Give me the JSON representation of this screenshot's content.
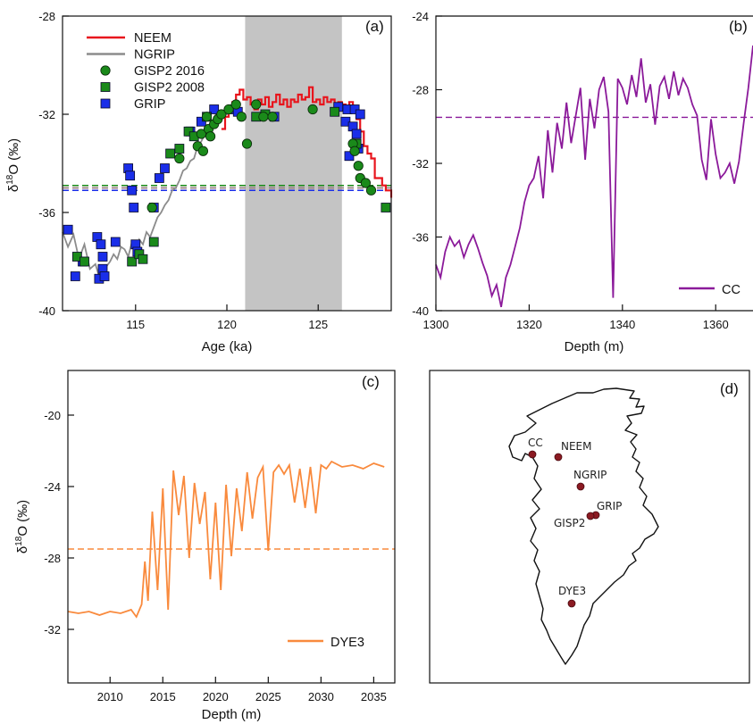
{
  "chart_data": [
    {
      "panel": "(a)",
      "type": "line",
      "xlabel": "Age (ka)",
      "ylabel": "δ18O (‰)",
      "xlim": [
        111,
        129
      ],
      "ylim": [
        -40,
        -28
      ],
      "xticks": [
        115,
        120,
        125
      ],
      "yticks": [
        -40,
        -36,
        -32,
        -28
      ],
      "legend_position": "top-left",
      "shaded_interval": [
        121,
        126.3
      ],
      "series": [
        {
          "name": "NEEM",
          "type": "step-line",
          "color": "#e8141c",
          "x": [
            119.7,
            119.9,
            120.1,
            120.3,
            120.5,
            120.7,
            120.9,
            121.1,
            121.3,
            121.5,
            121.7,
            121.9,
            122.1,
            122.3,
            122.5,
            122.7,
            122.9,
            123.1,
            123.3,
            123.5,
            123.7,
            123.9,
            124.1,
            124.3,
            124.5,
            124.7,
            124.9,
            125.1,
            125.3,
            125.5,
            125.7,
            125.9,
            126.1,
            126.3,
            126.5,
            126.7,
            126.9,
            127.1,
            127.3,
            127.5,
            127.7,
            127.9,
            128.1,
            128.3,
            128.5,
            128.7,
            128.9,
            129.0
          ],
          "y": [
            -32.6,
            -32.1,
            -31.8,
            -31.5,
            -31.2,
            -31.0,
            -31.4,
            -31.3,
            -31.6,
            -31.8,
            -31.4,
            -31.6,
            -31.3,
            -31.7,
            -31.5,
            -31.2,
            -31.6,
            -31.4,
            -31.7,
            -31.4,
            -31.5,
            -31.2,
            -31.4,
            -31.3,
            -30.9,
            -31.5,
            -31.4,
            -31.6,
            -31.3,
            -31.5,
            -31.4,
            -31.7,
            -31.5,
            -31.6,
            -31.7,
            -31.5,
            -31.8,
            -32.2,
            -32.7,
            -33.3,
            -33.6,
            -33.8,
            -34.6,
            -34.6,
            -34.9,
            -35.1,
            -35.1,
            -35.4
          ]
        },
        {
          "name": "NGRIP",
          "type": "line",
          "color": "#8c8c8c",
          "x": [
            111.0,
            111.3,
            111.6,
            111.9,
            112.2,
            112.5,
            112.8,
            113.0,
            113.2,
            113.4,
            113.6,
            113.8,
            114.0,
            114.2,
            114.4,
            114.6,
            114.8,
            115.0,
            115.2,
            115.4,
            115.6,
            115.8,
            116.0,
            116.2,
            116.4,
            116.6,
            116.8,
            117.0,
            117.2,
            117.4,
            117.6,
            117.8,
            118.0,
            118.2,
            118.4,
            118.6,
            118.8,
            119.0,
            119.2,
            119.4,
            119.6,
            119.8,
            120.0,
            120.2,
            120.4
          ],
          "y": [
            -36.8,
            -37.4,
            -36.9,
            -37.9,
            -37.3,
            -38.3,
            -38.1,
            -38.6,
            -38.4,
            -38.2,
            -38.0,
            -37.7,
            -37.9,
            -37.4,
            -37.5,
            -37.8,
            -37.2,
            -37.6,
            -37.1,
            -37.3,
            -36.8,
            -37.0,
            -36.6,
            -36.2,
            -36.0,
            -35.7,
            -35.5,
            -35.1,
            -35.0,
            -34.7,
            -34.3,
            -34.2,
            -33.9,
            -33.8,
            -33.3,
            -33.1,
            -32.8,
            -32.6,
            -32.3,
            -32.0,
            -32.1,
            -31.9,
            -32.0,
            -31.9,
            -31.9
          ]
        },
        {
          "name": "GISP2 2016",
          "type": "scatter",
          "marker": "circle",
          "color": "#1a8a1a",
          "x": [
            115.9,
            117.4,
            118.4,
            118.6,
            118.7,
            118.9,
            119.0,
            119.1,
            119.3,
            119.5,
            119.7,
            120.1,
            120.5,
            120.8,
            121.1,
            121.6,
            122.0,
            122.5,
            124.7,
            126.9,
            127.0,
            127.2,
            127.3,
            127.6,
            127.9
          ],
          "y": [
            -35.8,
            -33.8,
            -33.3,
            -32.8,
            -33.5,
            -32.1,
            -32.6,
            -32.9,
            -32.4,
            -32.2,
            -32.0,
            -31.8,
            -31.6,
            -32.1,
            -33.2,
            -31.6,
            -32.1,
            -32.1,
            -31.8,
            -33.2,
            -33.5,
            -34.1,
            -34.6,
            -34.8,
            -35.1
          ]
        },
        {
          "name": "GISP2 2008",
          "type": "scatter",
          "marker": "square",
          "color": "#1a8a1a",
          "x": [
            111.8,
            112.2,
            114.8,
            115.2,
            115.4,
            116.0,
            116.9,
            117.4,
            117.9,
            118.2,
            118.9,
            121.6,
            122.1,
            125.9,
            127.1,
            128.7
          ],
          "y": [
            -37.8,
            -38.0,
            -38.0,
            -37.7,
            -37.9,
            -37.2,
            -33.6,
            -33.4,
            -32.7,
            -32.9,
            -32.1,
            -32.1,
            -32.0,
            -31.9,
            -33.2,
            -35.8
          ]
        },
        {
          "name": "GRIP",
          "type": "scatter",
          "marker": "square",
          "color": "#1a2ee8",
          "x": [
            111.3,
            111.7,
            112.1,
            112.9,
            113.0,
            113.1,
            113.2,
            113.2,
            113.3,
            113.9,
            114.6,
            114.7,
            114.8,
            114.9,
            115.0,
            115.1,
            116.0,
            116.3,
            116.6,
            118.0,
            118.6,
            119.3,
            120.3,
            120.6,
            122.6,
            126.1,
            126.5,
            126.6,
            126.7,
            126.9,
            127.0,
            127.1,
            127.2,
            127.3
          ],
          "y": [
            -36.7,
            -38.6,
            -38.0,
            -37.0,
            -38.7,
            -37.3,
            -37.8,
            -38.3,
            -38.6,
            -37.2,
            -34.2,
            -34.5,
            -35.1,
            -35.8,
            -37.3,
            -37.6,
            -35.8,
            -34.6,
            -34.2,
            -32.7,
            -32.3,
            -31.8,
            -31.8,
            -31.9,
            -32.1,
            -31.7,
            -32.3,
            -31.8,
            -33.7,
            -32.5,
            -31.8,
            -32.8,
            -33.4,
            -32.0
          ]
        }
      ],
      "reference_lines": [
        {
          "y": -34.9,
          "color": "#1a8a1a",
          "style": "dashed"
        },
        {
          "y": -35.0,
          "color": "#e8141c",
          "style": "dashed"
        },
        {
          "y": -35.0,
          "color": "#8c8c8c",
          "style": "dashed"
        },
        {
          "y": -35.1,
          "color": "#1a2ee8",
          "style": "dashed"
        }
      ]
    },
    {
      "panel": "(b)",
      "type": "line",
      "xlabel": "Depth (m)",
      "ylabel": "",
      "xlim": [
        1300,
        1368
      ],
      "ylim": [
        -40,
        -24
      ],
      "xticks": [
        1300,
        1320,
        1340,
        1360
      ],
      "yticks": [
        -40,
        -36,
        -32,
        -28,
        -24
      ],
      "legend_position": "bottom-right",
      "series": [
        {
          "name": "CC",
          "color": "#8b1a9a",
          "x": [
            1300,
            1301,
            1302,
            1303,
            1304,
            1305,
            1306,
            1307,
            1308,
            1309,
            1310,
            1311,
            1312,
            1313,
            1314,
            1315,
            1316,
            1317,
            1318,
            1319,
            1320,
            1321,
            1322,
            1323,
            1324,
            1325,
            1326,
            1327,
            1328,
            1329,
            1330,
            1331,
            1332,
            1333,
            1334,
            1335,
            1336,
            1337,
            1338,
            1339,
            1340,
            1341,
            1342,
            1343,
            1344,
            1345,
            1346,
            1347,
            1348,
            1349,
            1350,
            1351,
            1352,
            1353,
            1354,
            1355,
            1356,
            1357,
            1358,
            1359,
            1360,
            1361,
            1362,
            1363,
            1364,
            1365,
            1366,
            1367,
            1368
          ],
          "y": [
            -37.5,
            -38.2,
            -36.8,
            -36.0,
            -36.5,
            -36.2,
            -37.1,
            -36.4,
            -35.9,
            -36.6,
            -37.4,
            -38.1,
            -39.2,
            -38.6,
            -39.8,
            -38.2,
            -37.5,
            -36.5,
            -35.5,
            -34.1,
            -33.2,
            -32.8,
            -31.6,
            -33.9,
            -30.2,
            -32.5,
            -29.8,
            -31.2,
            -28.7,
            -30.9,
            -29.4,
            -27.9,
            -31.8,
            -28.5,
            -30.1,
            -28.0,
            -27.3,
            -29.2,
            -39.3,
            -27.4,
            -27.9,
            -28.8,
            -27.2,
            -28.4,
            -26.3,
            -28.7,
            -27.7,
            -29.9,
            -27.8,
            -27.3,
            -28.5,
            -27.0,
            -28.3,
            -27.4,
            -27.9,
            -28.8,
            -29.4,
            -31.8,
            -32.9,
            -29.6,
            -31.5,
            -32.8,
            -32.5,
            -32.0,
            -33.1,
            -31.9,
            -29.8,
            -27.9,
            -25.6
          ]
        }
      ],
      "reference_lines": [
        {
          "y": -29.5,
          "color": "#8b1a9a",
          "style": "dashed"
        }
      ]
    },
    {
      "panel": "(c)",
      "type": "line",
      "xlabel": "Depth (m)",
      "ylabel": "δ18O (‰)",
      "xlim": [
        2006,
        2037
      ],
      "ylim": [
        -35,
        -17.5
      ],
      "xticks": [
        2010,
        2015,
        2020,
        2025,
        2030,
        2035
      ],
      "yticks": [
        -32,
        -28,
        -24,
        -20
      ],
      "legend_position": "bottom-right",
      "series": [
        {
          "name": "DYE3",
          "color": "#f98a3d",
          "x": [
            2006,
            2007,
            2008,
            2009,
            2010,
            2011,
            2012,
            2012.5,
            2013,
            2013.3,
            2013.6,
            2014,
            2014.5,
            2015,
            2015.5,
            2016,
            2016.5,
            2017,
            2017.5,
            2018,
            2018.5,
            2019,
            2019.5,
            2020,
            2020.5,
            2021,
            2021.5,
            2022,
            2022.5,
            2023,
            2023.5,
            2024,
            2024.5,
            2025,
            2025.5,
            2026,
            2026.5,
            2027,
            2027.5,
            2028,
            2028.5,
            2029,
            2029.5,
            2030,
            2030.5,
            2031,
            2032,
            2033,
            2034,
            2035,
            2036
          ],
          "y": [
            -31.0,
            -31.1,
            -31.0,
            -31.2,
            -31.0,
            -31.1,
            -30.9,
            -31.3,
            -30.6,
            -28.2,
            -30.4,
            -25.4,
            -29.8,
            -24.1,
            -30.9,
            -23.1,
            -25.6,
            -23.4,
            -28.0,
            -23.8,
            -26.1,
            -24.3,
            -29.2,
            -24.9,
            -29.8,
            -23.9,
            -27.9,
            -24.1,
            -26.5,
            -23.2,
            -25.8,
            -23.5,
            -22.9,
            -27.6,
            -23.2,
            -22.8,
            -23.3,
            -22.8,
            -24.9,
            -23.0,
            -25.2,
            -22.9,
            -25.5,
            -22.8,
            -23.0,
            -22.6,
            -22.9,
            -22.8,
            -23.0,
            -22.7,
            -22.9
          ]
        }
      ],
      "reference_lines": [
        {
          "y": -27.5,
          "color": "#f98a3d",
          "style": "dashed"
        }
      ]
    },
    {
      "panel": "(d)",
      "type": "map",
      "sites": [
        "CC",
        "NEEM",
        "NGRIP",
        "GRIP",
        "GISP2",
        "DYE3"
      ]
    }
  ],
  "labels": {
    "a_panel": "(a)",
    "b_panel": "(b)",
    "c_panel": "(c)",
    "d_panel": "(d)",
    "a_xlabel": "Age (ka)",
    "b_xlabel": "Depth (m)",
    "c_xlabel": "Depth (m)",
    "ylabel_main": "δ",
    "ylabel_sup": "18",
    "ylabel_unit": "O (‰)",
    "site_cc": "CC",
    "site_neem": "NEEM",
    "site_ngrip": "NGRIP",
    "site_grip": "GRIP",
    "site_gisp2": "GISP2",
    "site_dye3": "DYE3"
  }
}
